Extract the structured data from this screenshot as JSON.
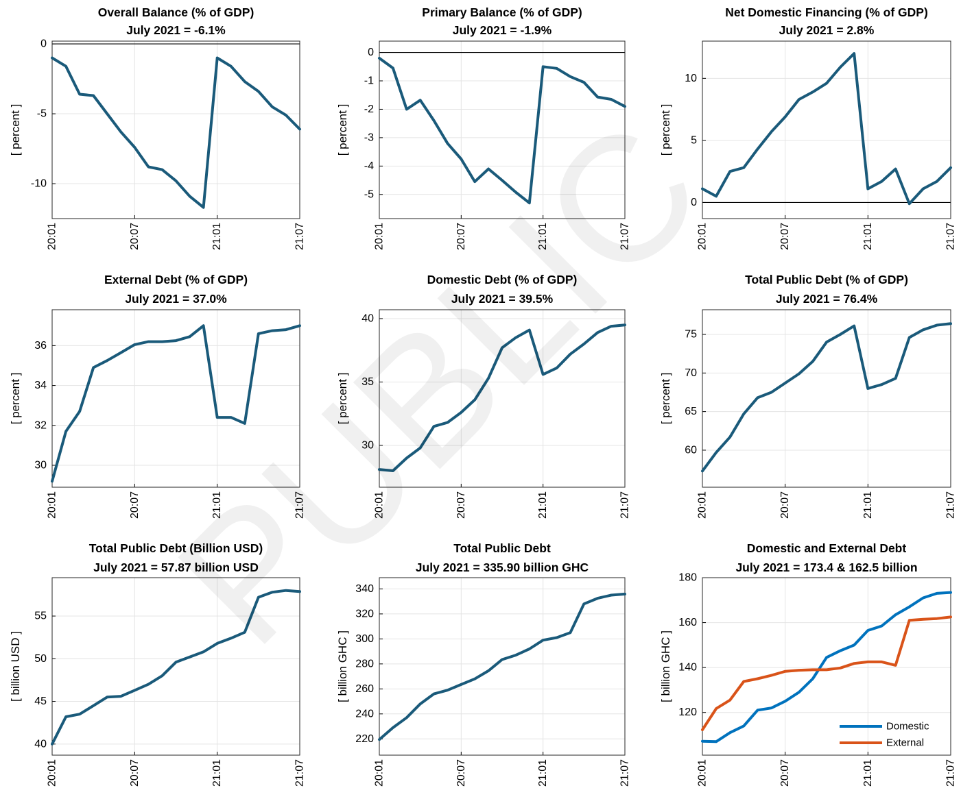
{
  "watermark": "PUBLIC",
  "colors": {
    "line": "#1a5a7a",
    "domestic": "#0072bd",
    "external": "#d95319",
    "grid": "#e4e4e4",
    "zero": "#000000"
  },
  "charts": [
    {
      "title1": "Overall Balance (% of GDP)",
      "title2": "July 2021 = -6.1%",
      "ylabel": "[ percent ]",
      "ylim": [
        -12.5,
        0.2
      ],
      "yticks": [
        0,
        -5,
        -10
      ],
      "zeroline": 0
    },
    {
      "title1": "Primary Balance (% of GDP)",
      "title2": "July 2021 = -1.9%",
      "ylabel": "[ percent ]",
      "ylim": [
        -5.85,
        0.4
      ],
      "yticks": [
        0,
        -1,
        -2,
        -3,
        -4,
        -5
      ],
      "zeroline": 0
    },
    {
      "title1": "Net Domestic Financing (% of GDP)",
      "title2": "July 2021 = 2.8%",
      "ylabel": "[ percent ]",
      "ylim": [
        -1.3,
        13.0
      ],
      "yticks": [
        0,
        5,
        10
      ],
      "zeroline": 0
    },
    {
      "title1": "External Debt (% of GDP)",
      "title2": "July 2021 = 37.0%",
      "ylabel": "[ percent ]",
      "ylim": [
        28.9,
        37.8
      ],
      "yticks": [
        30,
        32,
        34,
        36
      ]
    },
    {
      "title1": "Domestic Debt (% of GDP)",
      "title2": "July 2021 = 39.5%",
      "ylabel": "[ percent ]",
      "ylim": [
        26.7,
        40.7
      ],
      "yticks": [
        30,
        35,
        40
      ]
    },
    {
      "title1": "Total Public Debt (% of GDP)",
      "title2": "July 2021 = 76.4%",
      "ylabel": "[ percent ]",
      "ylim": [
        55.2,
        78.2
      ],
      "yticks": [
        60,
        65,
        70,
        75
      ]
    },
    {
      "title1": "Total Public Debt (Billion USD)",
      "title2": "July 2021 = 57.87 billion USD",
      "ylabel": "[ billion USD ]",
      "ylim": [
        38.7,
        59.5
      ],
      "yticks": [
        40,
        45,
        50,
        55
      ]
    },
    {
      "title1": "Total Public Debt",
      "title2": "July 2021 = 335.90 billion GHC",
      "ylabel": "[ billion GHC ]",
      "ylim": [
        207,
        349
      ],
      "yticks": [
        220,
        240,
        260,
        280,
        300,
        320,
        340
      ]
    },
    {
      "title1": "Domestic and External Debt",
      "title2": "July 2021 = 173.4 & 162.5 billion",
      "ylabel": "[ billion GHC ]",
      "ylim": [
        101,
        180
      ],
      "yticks": [
        120,
        140,
        160,
        180
      ],
      "legend": [
        "Domestic",
        "External"
      ],
      "legend_position": "bottom-right"
    }
  ],
  "chart_data": [
    {
      "type": "line",
      "title": "Overall Balance (% of GDP) July 2021 = -6.1%",
      "ylabel": "[ percent ]",
      "x": [
        "20:01",
        "20:02",
        "20:03",
        "20:04",
        "20:05",
        "20:06",
        "20:07",
        "20:08",
        "20:09",
        "20:10",
        "20:11",
        "20:12",
        "21:01",
        "21:02",
        "21:03",
        "21:04",
        "21:05",
        "21:06",
        "21:07"
      ],
      "xticks": [
        "20:01",
        "20:07",
        "21:01",
        "21:07"
      ],
      "series": [
        {
          "values": [
            -1.0,
            -1.6,
            -3.6,
            -3.7,
            -5.0,
            -6.3,
            -7.4,
            -8.8,
            -9.0,
            -9.8,
            -10.9,
            -11.7,
            -1.0,
            -1.6,
            -2.7,
            -3.4,
            -4.5,
            -5.1,
            -6.1
          ]
        }
      ]
    },
    {
      "type": "line",
      "title": "Primary Balance (% of GDP) July 2021 = -1.9%",
      "ylabel": "[ percent ]",
      "x": [
        "20:01",
        "20:02",
        "20:03",
        "20:04",
        "20:05",
        "20:06",
        "20:07",
        "20:08",
        "20:09",
        "20:10",
        "20:11",
        "20:12",
        "21:01",
        "21:02",
        "21:03",
        "21:04",
        "21:05",
        "21:06",
        "21:07"
      ],
      "xticks": [
        "20:01",
        "20:07",
        "21:01",
        "21:07"
      ],
      "series": [
        {
          "values": [
            -0.2,
            -0.55,
            -2.0,
            -1.68,
            -2.4,
            -3.2,
            -3.75,
            -4.55,
            -4.1,
            -4.5,
            -4.92,
            -5.3,
            -0.5,
            -0.56,
            -0.85,
            -1.05,
            -1.57,
            -1.65,
            -1.9
          ]
        }
      ]
    },
    {
      "type": "line",
      "title": "Net Domestic Financing (% of GDP) July 2021 = 2.8%",
      "ylabel": "[ percent ]",
      "x": [
        "20:01",
        "20:02",
        "20:03",
        "20:04",
        "20:05",
        "20:06",
        "20:07",
        "20:08",
        "20:09",
        "20:10",
        "20:11",
        "20:12",
        "21:01",
        "21:02",
        "21:03",
        "21:04",
        "21:05",
        "21:06",
        "21:07"
      ],
      "xticks": [
        "20:01",
        "20:07",
        "21:01",
        "21:07"
      ],
      "series": [
        {
          "values": [
            1.1,
            0.5,
            2.5,
            2.8,
            4.3,
            5.7,
            6.9,
            8.3,
            8.9,
            9.6,
            10.9,
            12.0,
            1.1,
            1.7,
            2.7,
            -0.1,
            1.1,
            1.7,
            2.8
          ]
        }
      ]
    },
    {
      "type": "line",
      "title": "External Debt (% of GDP) July 2021 = 37.0%",
      "ylabel": "[ percent ]",
      "x": [
        "20:01",
        "20:02",
        "20:03",
        "20:04",
        "20:05",
        "20:06",
        "20:07",
        "20:08",
        "20:09",
        "20:10",
        "20:11",
        "20:12",
        "21:01",
        "21:02",
        "21:03",
        "21:04",
        "21:05",
        "21:06",
        "21:07"
      ],
      "xticks": [
        "20:01",
        "20:07",
        "21:01",
        "21:07"
      ],
      "series": [
        {
          "values": [
            29.2,
            31.7,
            32.7,
            34.9,
            35.25,
            35.65,
            36.05,
            36.2,
            36.2,
            36.25,
            36.45,
            37.0,
            32.4,
            32.4,
            32.1,
            36.6,
            36.75,
            36.8,
            37.0
          ]
        }
      ]
    },
    {
      "type": "line",
      "title": "Domestic Debt (% of GDP) July 2021 = 39.5%",
      "ylabel": "[ percent ]",
      "x": [
        "20:01",
        "20:02",
        "20:03",
        "20:04",
        "20:05",
        "20:06",
        "20:07",
        "20:08",
        "20:09",
        "20:10",
        "20:11",
        "20:12",
        "21:01",
        "21:02",
        "21:03",
        "21:04",
        "21:05",
        "21:06",
        "21:07"
      ],
      "xticks": [
        "20:01",
        "20:07",
        "21:01",
        "21:07"
      ],
      "series": [
        {
          "values": [
            28.1,
            28.0,
            29.0,
            29.8,
            31.5,
            31.8,
            32.6,
            33.6,
            35.3,
            37.7,
            38.5,
            39.1,
            35.6,
            36.1,
            37.2,
            38.0,
            38.9,
            39.4,
            39.5
          ]
        }
      ]
    },
    {
      "type": "line",
      "title": "Total Public Debt (% of GDP) July 2021 = 76.4%",
      "ylabel": "[ percent ]",
      "x": [
        "20:01",
        "20:02",
        "20:03",
        "20:04",
        "20:05",
        "20:06",
        "20:07",
        "20:08",
        "20:09",
        "20:10",
        "20:11",
        "20:12",
        "21:01",
        "21:02",
        "21:03",
        "21:04",
        "21:05",
        "21:06",
        "21:07"
      ],
      "xticks": [
        "20:01",
        "20:07",
        "21:01",
        "21:07"
      ],
      "series": [
        {
          "values": [
            57.3,
            59.7,
            61.7,
            64.7,
            66.8,
            67.5,
            68.7,
            69.9,
            71.5,
            74.0,
            75.0,
            76.1,
            68.0,
            68.5,
            69.3,
            74.6,
            75.6,
            76.2,
            76.4
          ]
        }
      ]
    },
    {
      "type": "line",
      "title": "Total Public Debt (Billion USD) July 2021 = 57.87 billion USD",
      "ylabel": "[ billion USD ]",
      "x": [
        "20:01",
        "20:02",
        "20:03",
        "20:04",
        "20:05",
        "20:06",
        "20:07",
        "20:08",
        "20:09",
        "20:10",
        "20:11",
        "20:12",
        "21:01",
        "21:02",
        "21:03",
        "21:04",
        "21:05",
        "21:06",
        "21:07"
      ],
      "xticks": [
        "20:01",
        "20:07",
        "21:01",
        "21:07"
      ],
      "series": [
        {
          "values": [
            40.0,
            43.2,
            43.5,
            44.5,
            45.5,
            45.6,
            46.3,
            47.0,
            48.0,
            49.6,
            50.2,
            50.8,
            51.8,
            52.4,
            53.1,
            57.2,
            57.8,
            58.0,
            57.87
          ]
        }
      ]
    },
    {
      "type": "line",
      "title": "Total Public Debt July 2021 = 335.90 billion GHC",
      "ylabel": "[ billion GHC ]",
      "x": [
        "20:01",
        "20:02",
        "20:03",
        "20:04",
        "20:05",
        "20:06",
        "20:07",
        "20:08",
        "20:09",
        "20:10",
        "20:11",
        "20:12",
        "21:01",
        "21:02",
        "21:03",
        "21:04",
        "21:05",
        "21:06",
        "21:07"
      ],
      "xticks": [
        "20:01",
        "20:07",
        "21:01",
        "21:07"
      ],
      "series": [
        {
          "values": [
            219.5,
            229,
            237,
            248,
            256,
            259,
            263.5,
            268,
            274.5,
            283.5,
            287,
            292,
            299,
            301,
            305,
            328,
            332.5,
            335,
            335.9
          ]
        }
      ]
    },
    {
      "type": "line",
      "title": "Domestic and External Debt July 2021 = 173.4 & 162.5 billion",
      "ylabel": "[ billion GHC ]",
      "x": [
        "20:01",
        "20:02",
        "20:03",
        "20:04",
        "20:05",
        "20:06",
        "20:07",
        "20:08",
        "20:09",
        "20:10",
        "20:11",
        "20:12",
        "21:01",
        "21:02",
        "21:03",
        "21:04",
        "21:05",
        "21:06",
        "21:07"
      ],
      "xticks": [
        "20:01",
        "20:07",
        "21:01",
        "21:07"
      ],
      "legend": "bottom-right",
      "series": [
        {
          "name": "Domestic",
          "values": [
            107.2,
            107.0,
            111.0,
            114.0,
            121.0,
            122.0,
            125.0,
            129.0,
            135.0,
            144.5,
            147.5,
            150.0,
            156.5,
            158.5,
            163.5,
            167.0,
            171.0,
            173.0,
            173.4
          ]
        },
        {
          "name": "External",
          "values": [
            112.3,
            121.7,
            125.5,
            133.8,
            135.0,
            136.5,
            138.3,
            138.8,
            139.0,
            139.0,
            139.8,
            141.8,
            142.5,
            142.5,
            141.0,
            161.0,
            161.5,
            161.8,
            162.5
          ]
        }
      ]
    }
  ]
}
